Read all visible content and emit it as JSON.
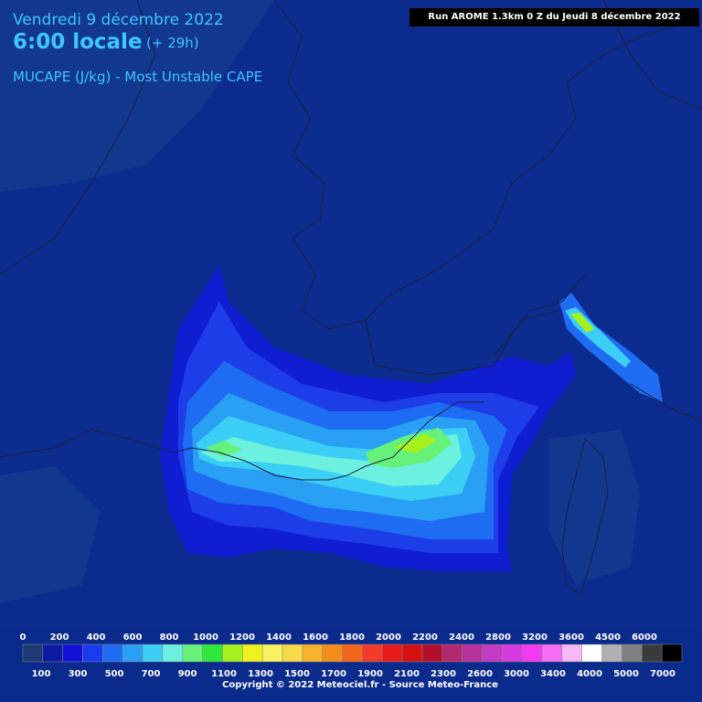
{
  "header": {
    "date": "Vendredi 9 décembre 2022",
    "hour": "6:00 locale",
    "lead": "(+ 29h)",
    "parameter": "MUCAPE (J/kg) - Most Unstable CAPE",
    "run": "Run AROME 1.3km 0 Z du Jeudi 8 décembre 2022"
  },
  "legend": {
    "top_labels": [
      "0",
      "200",
      "400",
      "600",
      "800",
      "1000",
      "1200",
      "1400",
      "1600",
      "1800",
      "2000",
      "2200",
      "2400",
      "2800",
      "3200",
      "3600",
      "4500",
      "6000"
    ],
    "bottom_labels": [
      "100",
      "300",
      "500",
      "700",
      "900",
      "1100",
      "1300",
      "1500",
      "1700",
      "1900",
      "2100",
      "2300",
      "2600",
      "3000",
      "3400",
      "4000",
      "5000",
      "7000"
    ],
    "colors": [
      "#1f3a73",
      "#0a1aa3",
      "#1212d6",
      "#1a3af0",
      "#1e6cf2",
      "#2aa0f5",
      "#3ccff5",
      "#6cf0e0",
      "#66f27a",
      "#2ee83a",
      "#a6f01e",
      "#eef21a",
      "#f7f25e",
      "#f7d94a",
      "#f7b12a",
      "#f58c1a",
      "#f2661a",
      "#f23a2a",
      "#e61a1a",
      "#d60f0f",
      "#b20f2a",
      "#b2286e",
      "#b8309c",
      "#c23ac2",
      "#d63ae0",
      "#f23af2",
      "#f56ef2",
      "#f7b8f7",
      "#ffffff",
      "#b0b0b0",
      "#808080",
      "#3a3a3a",
      "#000000"
    ],
    "copyright": "Copyright © 2022 Meteociel.fr - Source Meteo-France"
  }
}
